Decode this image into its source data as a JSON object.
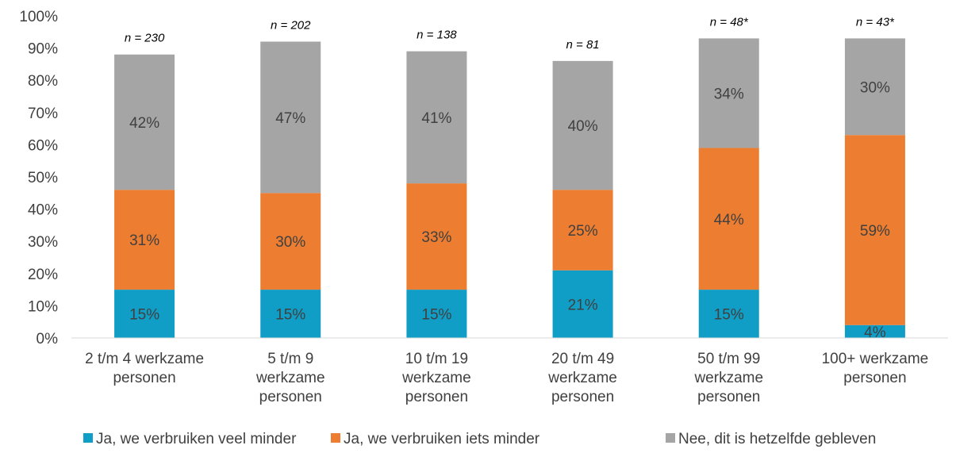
{
  "chart_data": {
    "type": "bar",
    "stacked": true,
    "categories": [
      [
        "2 t/m 4 werkzame",
        "personen"
      ],
      [
        "5 t/m 9",
        "werkzame",
        "personen"
      ],
      [
        "10 t/m 19",
        "werkzame",
        "personen"
      ],
      [
        "20 t/m 49",
        "werkzame",
        "personen"
      ],
      [
        "50 t/m 99",
        "werkzame",
        "personen"
      ],
      [
        "100+ werkzame",
        "personen"
      ]
    ],
    "sample_sizes": [
      "n = 230",
      "n = 202",
      "n = 138",
      "n = 81",
      "n = 48*",
      "n = 43*"
    ],
    "series": [
      {
        "name": "Ja, we verbruiken veel minder",
        "color": "#109DC6",
        "values": [
          15,
          15,
          15,
          21,
          15,
          4
        ],
        "labels": [
          "15%",
          "15%",
          "15%",
          "21%",
          "15%",
          "4%"
        ]
      },
      {
        "name": "Ja, we verbruiken iets minder",
        "color": "#EC7D31",
        "values": [
          31,
          30,
          33,
          25,
          44,
          59
        ],
        "labels": [
          "31%",
          "30%",
          "33%",
          "25%",
          "44%",
          "59%"
        ]
      },
      {
        "name": "Nee, dit is hetzelfde gebleven",
        "color": "#A5A5A5",
        "values": [
          42,
          47,
          41,
          40,
          34,
          30
        ],
        "labels": [
          "42%",
          "47%",
          "41%",
          "40%",
          "34%",
          "30%"
        ]
      }
    ],
    "y_ticks": [
      "0%",
      "10%",
      "20%",
      "30%",
      "40%",
      "50%",
      "60%",
      "70%",
      "80%",
      "90%",
      "100%"
    ],
    "ylim": [
      0,
      100
    ],
    "grid": false,
    "legend_position": "bottom"
  }
}
